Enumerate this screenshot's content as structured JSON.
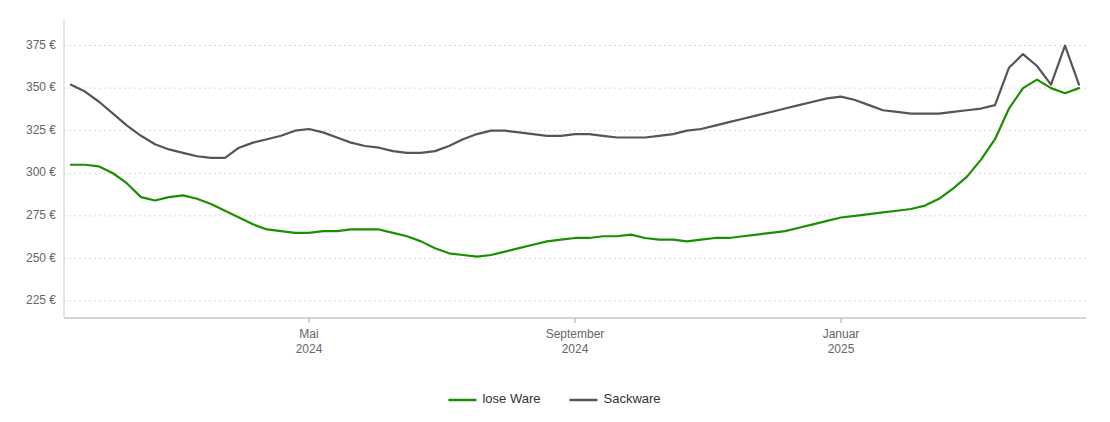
{
  "chart_data": {
    "type": "line",
    "categories": [
      null,
      null,
      null,
      null,
      null,
      null,
      null,
      null,
      null,
      null,
      null,
      null,
      null,
      null,
      null,
      null,
      null,
      "Mai\n2024",
      null,
      null,
      null,
      null,
      null,
      null,
      null,
      null,
      null,
      null,
      null,
      null,
      null,
      null,
      null,
      null,
      null,
      null,
      "September\n2024",
      null,
      null,
      null,
      null,
      null,
      null,
      null,
      null,
      null,
      null,
      null,
      null,
      null,
      null,
      null,
      null,
      null,
      null,
      "Januar\n2025",
      null,
      null,
      null,
      null,
      null,
      null,
      null,
      null,
      null,
      null,
      null,
      null,
      null,
      null,
      null,
      null,
      null
    ],
    "series": [
      {
        "name": "lose Ware",
        "color": "#1a8f00",
        "values": [
          305,
          305,
          304,
          300,
          294,
          286,
          284,
          286,
          287,
          285,
          282,
          278,
          274,
          270,
          267,
          266,
          265,
          265,
          266,
          266,
          267,
          267,
          267,
          265,
          263,
          260,
          256,
          253,
          252,
          251,
          252,
          254,
          256,
          258,
          260,
          261,
          262,
          262,
          263,
          263,
          264,
          262,
          261,
          261,
          260,
          261,
          262,
          262,
          263,
          264,
          265,
          266,
          268,
          270,
          272,
          274,
          275,
          276,
          277,
          278,
          279,
          281,
          285,
          291,
          298,
          308,
          320,
          338,
          350,
          355,
          350,
          347,
          350
        ]
      },
      {
        "name": "Sackware",
        "color": "#555555",
        "values": [
          352,
          348,
          342,
          335,
          328,
          322,
          317,
          314,
          312,
          310,
          309,
          309,
          315,
          318,
          320,
          322,
          325,
          326,
          324,
          321,
          318,
          316,
          315,
          313,
          312,
          312,
          313,
          316,
          320,
          323,
          325,
          325,
          324,
          323,
          322,
          322,
          323,
          323,
          322,
          321,
          321,
          321,
          322,
          323,
          325,
          326,
          328,
          330,
          332,
          334,
          336,
          338,
          340,
          342,
          344,
          345,
          343,
          340,
          337,
          336,
          335,
          335,
          335,
          336,
          337,
          338,
          340,
          362,
          370,
          363,
          352,
          375,
          352
        ]
      }
    ],
    "ylim": [
      215,
      390
    ],
    "yticks": [
      {
        "value": 225,
        "label": "225 €"
      },
      {
        "value": 250,
        "label": "250 €"
      },
      {
        "value": 275,
        "label": "275 €"
      },
      {
        "value": 300,
        "label": "300 €"
      },
      {
        "value": 325,
        "label": "325 €"
      },
      {
        "value": 350,
        "label": "350 €"
      },
      {
        "value": 375,
        "label": "375 €"
      }
    ],
    "grid": true,
    "legend": "bottom"
  }
}
